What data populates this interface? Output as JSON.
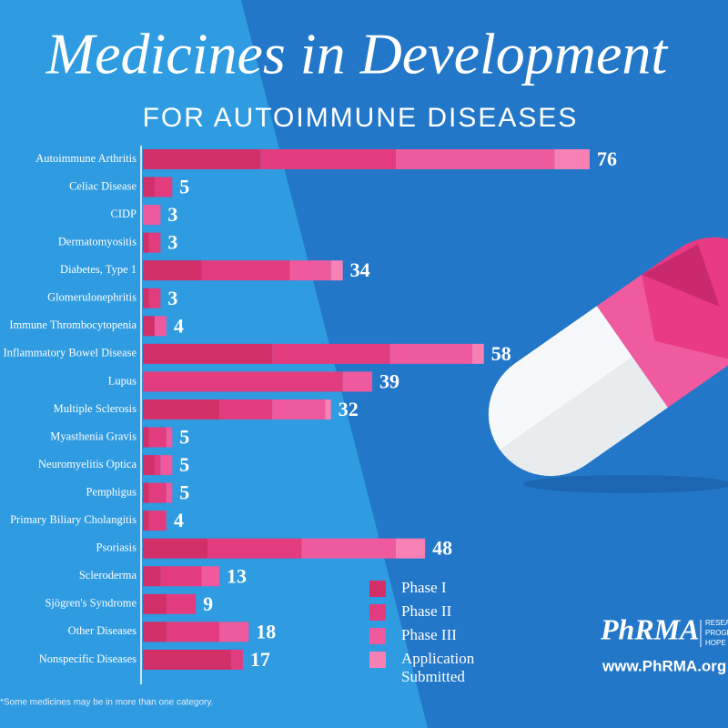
{
  "title": "Medicines in Development",
  "subtitle": "FOR AUTOIMMUNE DISEASES",
  "footnote": "*Some medicines may be in more than one category.",
  "branding": {
    "logo": "PhRMA",
    "tagline": [
      "RESEARCH",
      "PROGRESS",
      "HOPE"
    ],
    "url": "www.PhRMA.org"
  },
  "chart_data": {
    "type": "bar",
    "orientation": "horizontal",
    "stacked": true,
    "categories": [
      "Autoimmune Arthritis",
      "Celiac Disease",
      "CIDP",
      "Dermatomyositis",
      "Diabetes, Type 1",
      "Glomerulonephritis",
      "Immune Thrombocytopenia",
      "Inflammatory Bowel Disease",
      "Lupus",
      "Multiple Sclerosis",
      "Myasthenia Gravis",
      "Neuromyelitis Optica",
      "Pemphigus",
      "Primary Biliary Cholangitis",
      "Psoriasis",
      "Scleroderma",
      "Sjögren's Syndrome",
      "Other Diseases",
      "Nonspecific Diseases"
    ],
    "series": [
      {
        "name": "Phase I",
        "color": "#d22f69",
        "values": [
          20,
          2,
          0,
          1,
          10,
          1,
          2,
          22,
          0,
          13,
          1,
          2,
          1,
          1,
          11,
          3,
          4,
          4,
          15
        ]
      },
      {
        "name": "Phase II",
        "color": "#e23c7f",
        "values": [
          23,
          3,
          0,
          2,
          15,
          2,
          0,
          20,
          34,
          9,
          3,
          1,
          3,
          3,
          16,
          7,
          5,
          9,
          2
        ]
      },
      {
        "name": "Phase III",
        "color": "#ee5a9d",
        "values": [
          27,
          0,
          3,
          0,
          7,
          0,
          2,
          14,
          5,
          9,
          1,
          2,
          1,
          0,
          16,
          3,
          0,
          5,
          0
        ]
      },
      {
        "name": "Application Submitted",
        "color": "#f780b5",
        "values": [
          6,
          0,
          0,
          0,
          2,
          0,
          0,
          2,
          0,
          1,
          0,
          0,
          0,
          0,
          5,
          0,
          0,
          0,
          0
        ]
      }
    ],
    "totals": [
      76,
      5,
      3,
      3,
      34,
      3,
      4,
      58,
      39,
      32,
      5,
      5,
      5,
      4,
      48,
      13,
      9,
      18,
      17
    ]
  }
}
